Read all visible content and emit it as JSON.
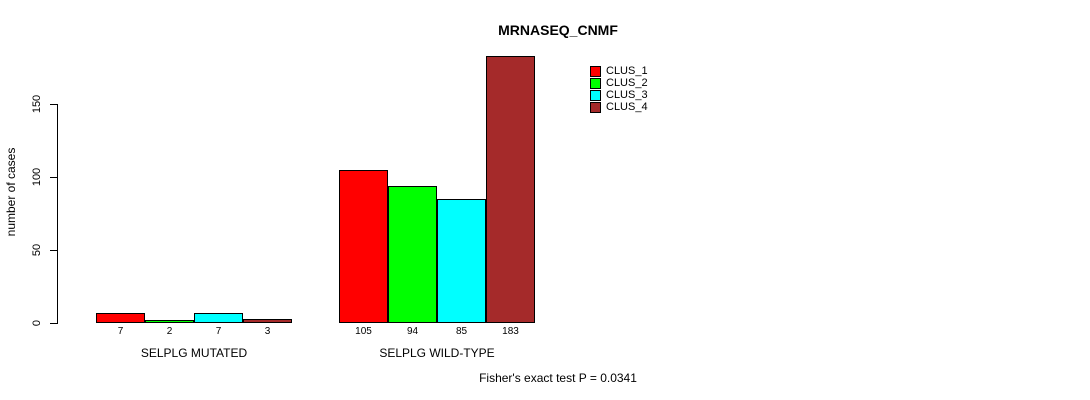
{
  "colors": {
    "background": "#ffffff",
    "axis": "#000000",
    "bar_border": "#000000",
    "text": "#000000"
  },
  "chart_data": {
    "type": "bar",
    "title": "MRNASEQ_CNMF",
    "xlabel": "",
    "ylabel": "number of cases",
    "categories": [
      "SELPLG MUTATED",
      "SELPLG WILD-TYPE"
    ],
    "series": [
      {
        "name": "CLUS_1",
        "color": "#ff0000",
        "values": [
          7,
          105
        ]
      },
      {
        "name": "CLUS_2",
        "color": "#00ff00",
        "values": [
          2,
          94
        ]
      },
      {
        "name": "CLUS_3",
        "color": "#00ffff",
        "values": [
          7,
          85
        ]
      },
      {
        "name": "CLUS_4",
        "color": "#a52a2a",
        "values": [
          3,
          183
        ]
      }
    ],
    "bar_value_labels": [
      [
        "7",
        "2",
        "7",
        "3"
      ],
      [
        "105",
        "94",
        "85",
        "183"
      ]
    ],
    "yticks": [
      0,
      50,
      100,
      150
    ],
    "ylim": [
      0,
      150
    ],
    "grid": false,
    "legend_position": "top-right",
    "legend_entries": [
      "CLUS_1",
      "CLUS_2",
      "CLUS_3",
      "CLUS_4"
    ],
    "annotation": "Fisher's exact test P = 0.0341"
  }
}
